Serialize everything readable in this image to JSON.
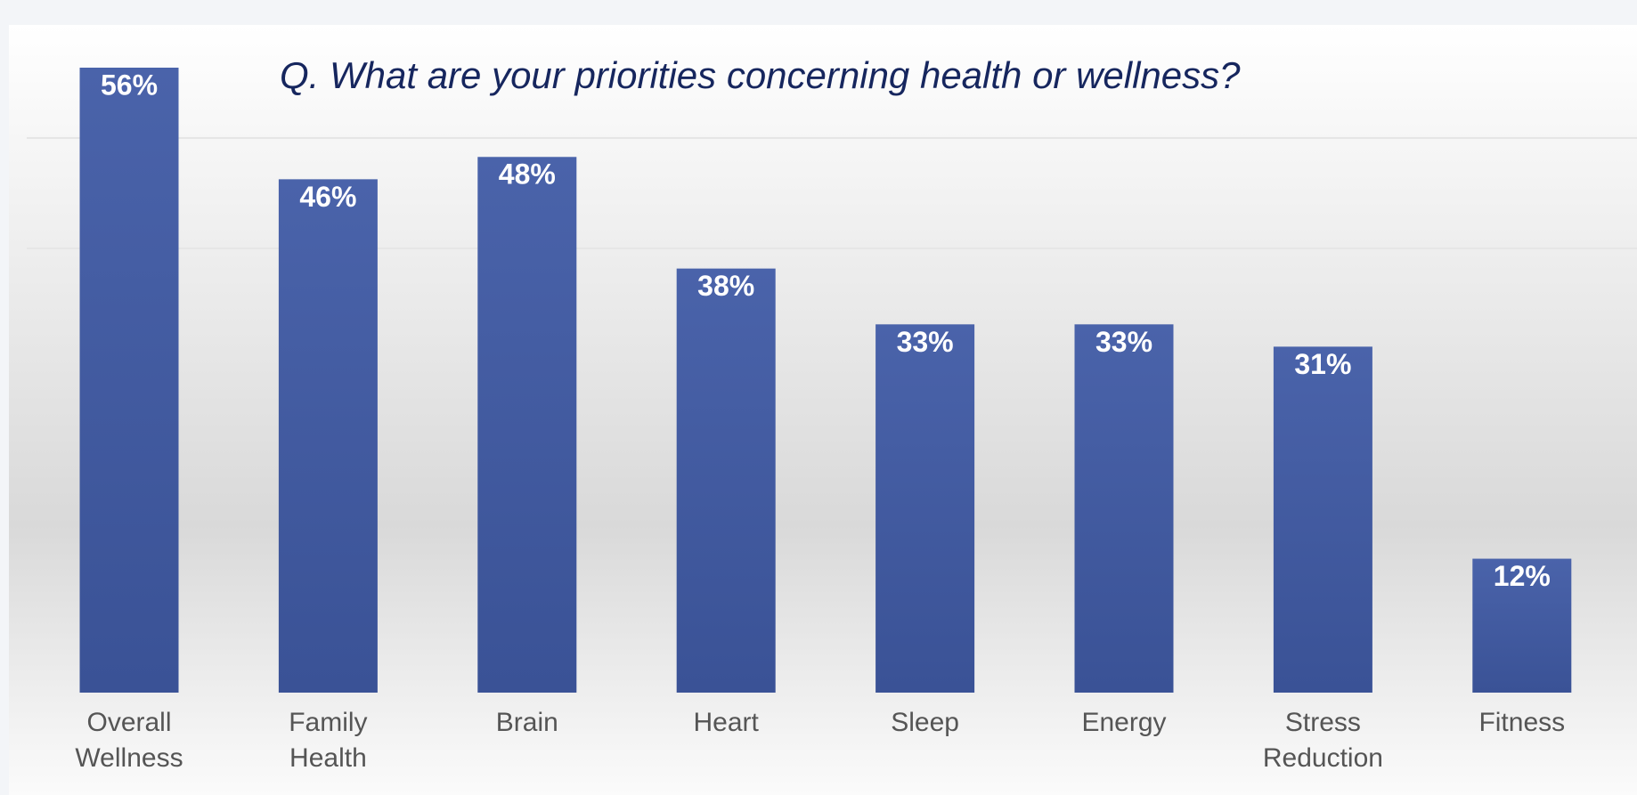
{
  "chart_data": {
    "type": "bar",
    "title": "Q. What are your priorities concerning health or wellness?",
    "categories": [
      "Overall Wellness",
      "Family Health",
      "Brain",
      "Heart",
      "Sleep",
      "Energy",
      "Stress Reduction",
      "Fitness"
    ],
    "values": [
      56,
      46,
      48,
      38,
      33,
      33,
      31,
      12
    ],
    "value_labels": [
      "56%",
      "46%",
      "48%",
      "38%",
      "33%",
      "33%",
      "31%",
      "12%"
    ],
    "color": "#4059a0"
  }
}
